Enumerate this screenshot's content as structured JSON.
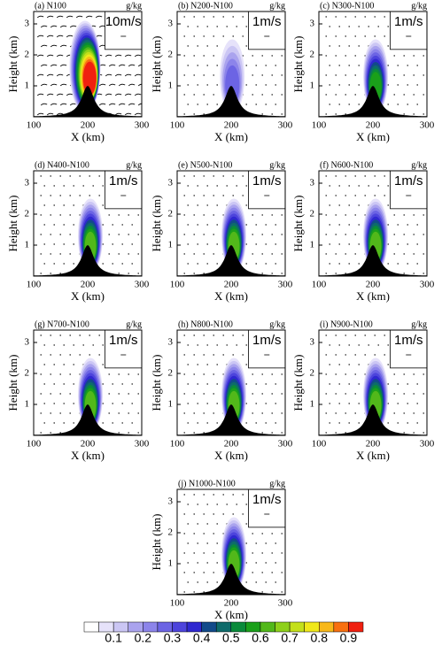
{
  "chart_data": [
    {
      "type": "contour",
      "title": "(a) N100",
      "unit": "g/kg",
      "xlabel": "X (km)",
      "ylabel": "Height (km)",
      "xlim": [
        100,
        300
      ],
      "ylim": [
        0,
        3.4
      ],
      "xticks": [
        100,
        200,
        300
      ],
      "yticks": [
        1,
        2,
        3
      ],
      "ref_vector": "10m/s"
    },
    {
      "type": "contour",
      "title": "(b) N200-N100",
      "unit": "g/kg",
      "xlabel": "X (km)",
      "ylabel": "Height (km)",
      "xlim": [
        100,
        300
      ],
      "ylim": [
        0,
        3.4
      ],
      "xticks": [
        100,
        200,
        300
      ],
      "yticks": [
        1,
        2,
        3
      ],
      "ref_vector": "1m/s"
    },
    {
      "type": "contour",
      "title": "(c) N300-N100",
      "unit": "g/kg",
      "xlabel": "X (km)",
      "ylabel": "Height (km)",
      "xlim": [
        100,
        300
      ],
      "ylim": [
        0,
        3.4
      ],
      "xticks": [
        100,
        200,
        300
      ],
      "yticks": [
        1,
        2,
        3
      ],
      "ref_vector": "1m/s"
    },
    {
      "type": "contour",
      "title": "(d) N400-N100",
      "unit": "g/kg",
      "xlabel": "X (km)",
      "ylabel": "Height (km)",
      "xlim": [
        100,
        300
      ],
      "ylim": [
        0,
        3.4
      ],
      "xticks": [
        100,
        200,
        300
      ],
      "yticks": [
        1,
        2,
        3
      ],
      "ref_vector": "1m/s"
    },
    {
      "type": "contour",
      "title": "(e) N500-N100",
      "unit": "g/kg",
      "xlabel": "X (km)",
      "ylabel": "Height (km)",
      "xlim": [
        100,
        300
      ],
      "ylim": [
        0,
        3.4
      ],
      "xticks": [
        100,
        200,
        300
      ],
      "yticks": [
        1,
        2,
        3
      ],
      "ref_vector": "1m/s"
    },
    {
      "type": "contour",
      "title": "(f) N600-N100",
      "unit": "g/kg",
      "xlabel": "X (km)",
      "ylabel": "Height (km)",
      "xlim": [
        100,
        300
      ],
      "ylim": [
        0,
        3.4
      ],
      "xticks": [
        100,
        200,
        300
      ],
      "yticks": [
        1,
        2,
        3
      ],
      "ref_vector": "1m/s"
    },
    {
      "type": "contour",
      "title": "(g) N700-N100",
      "unit": "g/kg",
      "xlabel": "X (km)",
      "ylabel": "Height (km)",
      "xlim": [
        100,
        300
      ],
      "ylim": [
        0,
        3.4
      ],
      "xticks": [
        100,
        200,
        300
      ],
      "yticks": [
        1,
        2,
        3
      ],
      "ref_vector": "1m/s"
    },
    {
      "type": "contour",
      "title": "(h) N800-N100",
      "unit": "g/kg",
      "xlabel": "X (km)",
      "ylabel": "Height (km)",
      "xlim": [
        100,
        300
      ],
      "ylim": [
        0,
        3.4
      ],
      "xticks": [
        100,
        200,
        300
      ],
      "yticks": [
        1,
        2,
        3
      ],
      "ref_vector": "1m/s"
    },
    {
      "type": "contour",
      "title": "(i) N900-N100",
      "unit": "g/kg",
      "xlabel": "X (km)",
      "ylabel": "Height (km)",
      "xlim": [
        100,
        300
      ],
      "ylim": [
        0,
        3.4
      ],
      "xticks": [
        100,
        200,
        300
      ],
      "yticks": [
        1,
        2,
        3
      ],
      "ref_vector": "1m/s"
    },
    {
      "type": "contour",
      "title": "(j) N1000-N100",
      "unit": "g/kg",
      "xlabel": "X (km)",
      "ylabel": "Height (km)",
      "xlim": [
        100,
        300
      ],
      "ylim": [
        0,
        3.4
      ],
      "xticks": [
        100,
        200,
        300
      ],
      "yticks": [
        1,
        2,
        3
      ],
      "ref_vector": "1m/s"
    }
  ],
  "colorbar": {
    "lim": [
      0,
      0.95
    ],
    "ticks": [
      0.1,
      0.2,
      0.3,
      0.4,
      0.5,
      0.6,
      0.7,
      0.8,
      0.9
    ],
    "colors": [
      "#ffffff",
      "#e6e2fa",
      "#cbc6f4",
      "#aaa3ee",
      "#8c84ea",
      "#6c64e4",
      "#4d44dc",
      "#2f28d0",
      "#124a8a",
      "#0e6b6b",
      "#0a8a3a",
      "#1aa01a",
      "#52b81a",
      "#8ed01a",
      "#c4e01a",
      "#f0e81a",
      "#f8b81a",
      "#f87010",
      "#f02010"
    ]
  }
}
